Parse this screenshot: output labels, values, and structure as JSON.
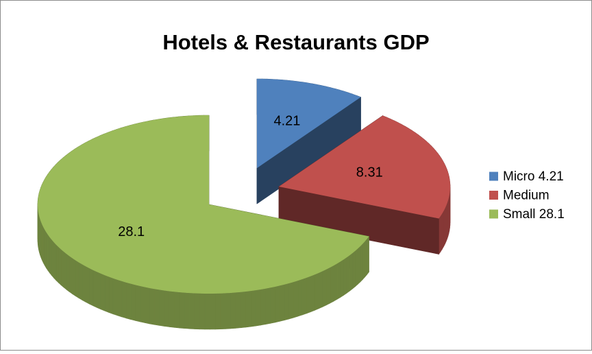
{
  "chart_data": {
    "type": "pie",
    "title": "Hotels & Restaurants GDP",
    "categories": [
      "Micro 4.21",
      "Medium",
      "Small 28.1"
    ],
    "values": [
      4.21,
      8.31,
      28.1
    ],
    "colors": [
      "#4f81bd",
      "#c0504d",
      "#9bbb59"
    ],
    "legend": "right"
  }
}
